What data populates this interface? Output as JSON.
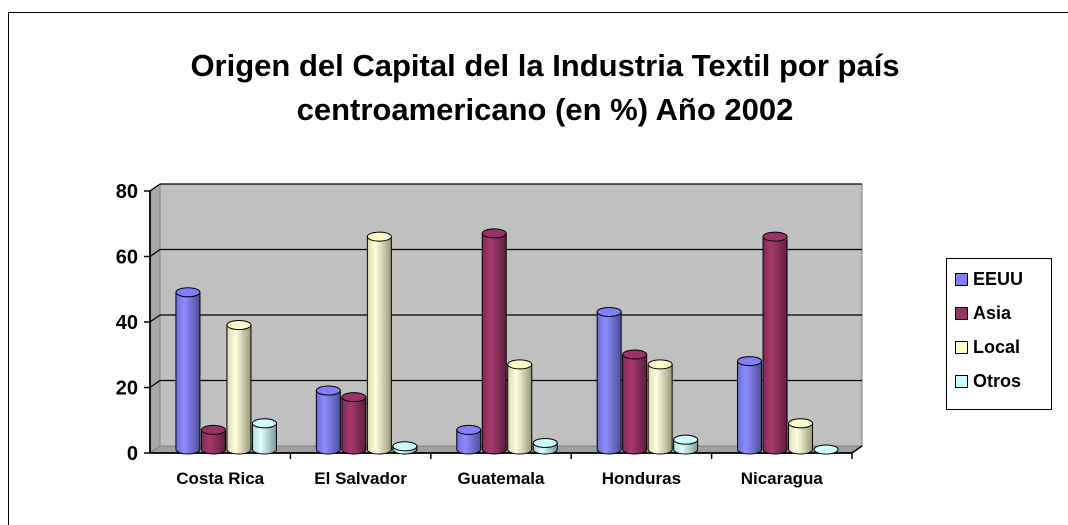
{
  "chart_data": {
    "type": "bar",
    "title": "Origen del Capital del la Industria Textil por país centroamericano (en %)  Año 2002",
    "title_lines": [
      "Origen del Capital del la Industria Textil por país",
      "centroamericano (en %)  Año 2002"
    ],
    "categories": [
      "Costa Rica",
      "El Salvador",
      "Guatemala",
      "Honduras",
      "Nicaragua"
    ],
    "series": [
      {
        "name": "EEUU",
        "values": [
          48,
          18,
          6,
          42,
          27
        ],
        "color": "#8080ff"
      },
      {
        "name": "Asia",
        "values": [
          6,
          16,
          66,
          29,
          65
        ],
        "color": "#993366"
      },
      {
        "name": "Local",
        "values": [
          38,
          65,
          26,
          26,
          8
        ],
        "color": "#ffffcc"
      },
      {
        "name": "Otros",
        "values": [
          8,
          1,
          2,
          3,
          0
        ],
        "color": "#ccffff"
      }
    ],
    "yticks": [
      0,
      20,
      40,
      60,
      80
    ],
    "ylim": [
      0,
      80
    ],
    "xlabel": "",
    "ylabel": "",
    "grid": true,
    "style": "3d-cylinder",
    "legend_position": "right",
    "plot_background": "#c0c0c0"
  }
}
